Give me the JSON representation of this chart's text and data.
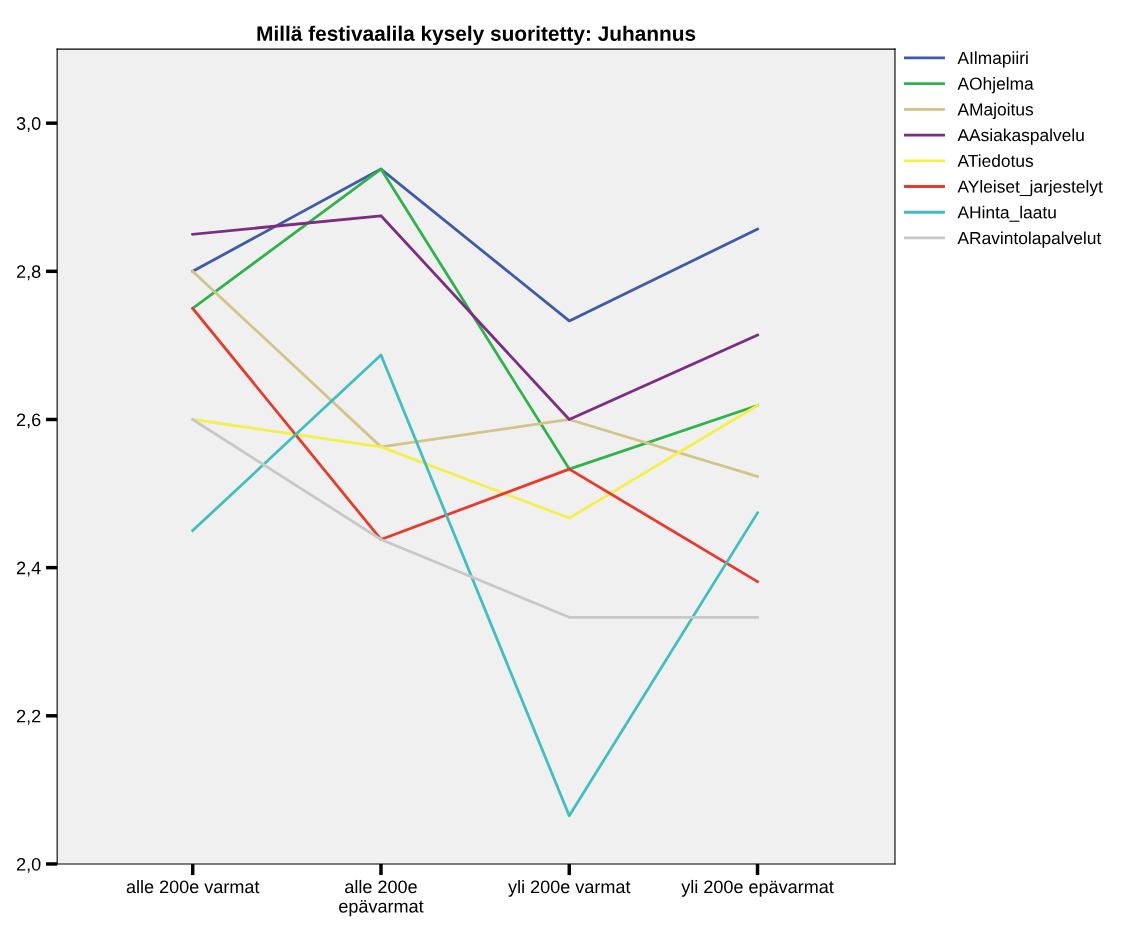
{
  "chart_data": {
    "type": "line",
    "title": "Millä festivaalila kysely suoritetty: Juhannus",
    "categories": [
      "alle 200e varmat",
      "alle 200e\nepävarmat",
      "yli 200e varmat",
      "yli 200e epävarmat"
    ],
    "series": [
      {
        "name": "AIlmapiiri",
        "color": "#3e5ba9",
        "values": [
          2.8,
          2.938,
          2.733,
          2.857
        ]
      },
      {
        "name": "AOhjelma",
        "color": "#2db34a",
        "values": [
          2.75,
          2.938,
          2.533,
          2.619
        ]
      },
      {
        "name": "AMajoitus",
        "color": "#d4c48a",
        "values": [
          2.8,
          2.563,
          2.6,
          2.523
        ]
      },
      {
        "name": "AAsiakaspalvelu",
        "color": "#7b2d82",
        "values": [
          2.85,
          2.875,
          2.6,
          2.714
        ]
      },
      {
        "name": "ATiedotus",
        "color": "#f5ef4b",
        "values": [
          2.6,
          2.563,
          2.467,
          2.619
        ]
      },
      {
        "name": "AYleiset_jarjestelyt",
        "color": "#e8392b",
        "values": [
          2.75,
          2.438,
          2.533,
          2.381
        ]
      },
      {
        "name": "AHinta_laatu",
        "color": "#3fbfc0",
        "values": [
          2.45,
          2.687,
          2.065,
          2.474
        ]
      },
      {
        "name": "ARavintolapalvelut",
        "color": "#c8c8c8",
        "values": [
          2.6,
          2.438,
          2.333,
          2.333
        ]
      }
    ],
    "ylim": [
      2.0,
      3.1
    ],
    "yticks": [
      {
        "value": 2.0,
        "label": "2,0"
      },
      {
        "value": 2.2,
        "label": "2,2"
      },
      {
        "value": 2.4,
        "label": "2,4"
      },
      {
        "value": 2.6,
        "label": "2,6"
      },
      {
        "value": 2.8,
        "label": "2,8"
      },
      {
        "value": 3.0,
        "label": "3,0"
      }
    ],
    "legend": "top right",
    "grid": false,
    "marker": "none",
    "line_style": "solid"
  }
}
